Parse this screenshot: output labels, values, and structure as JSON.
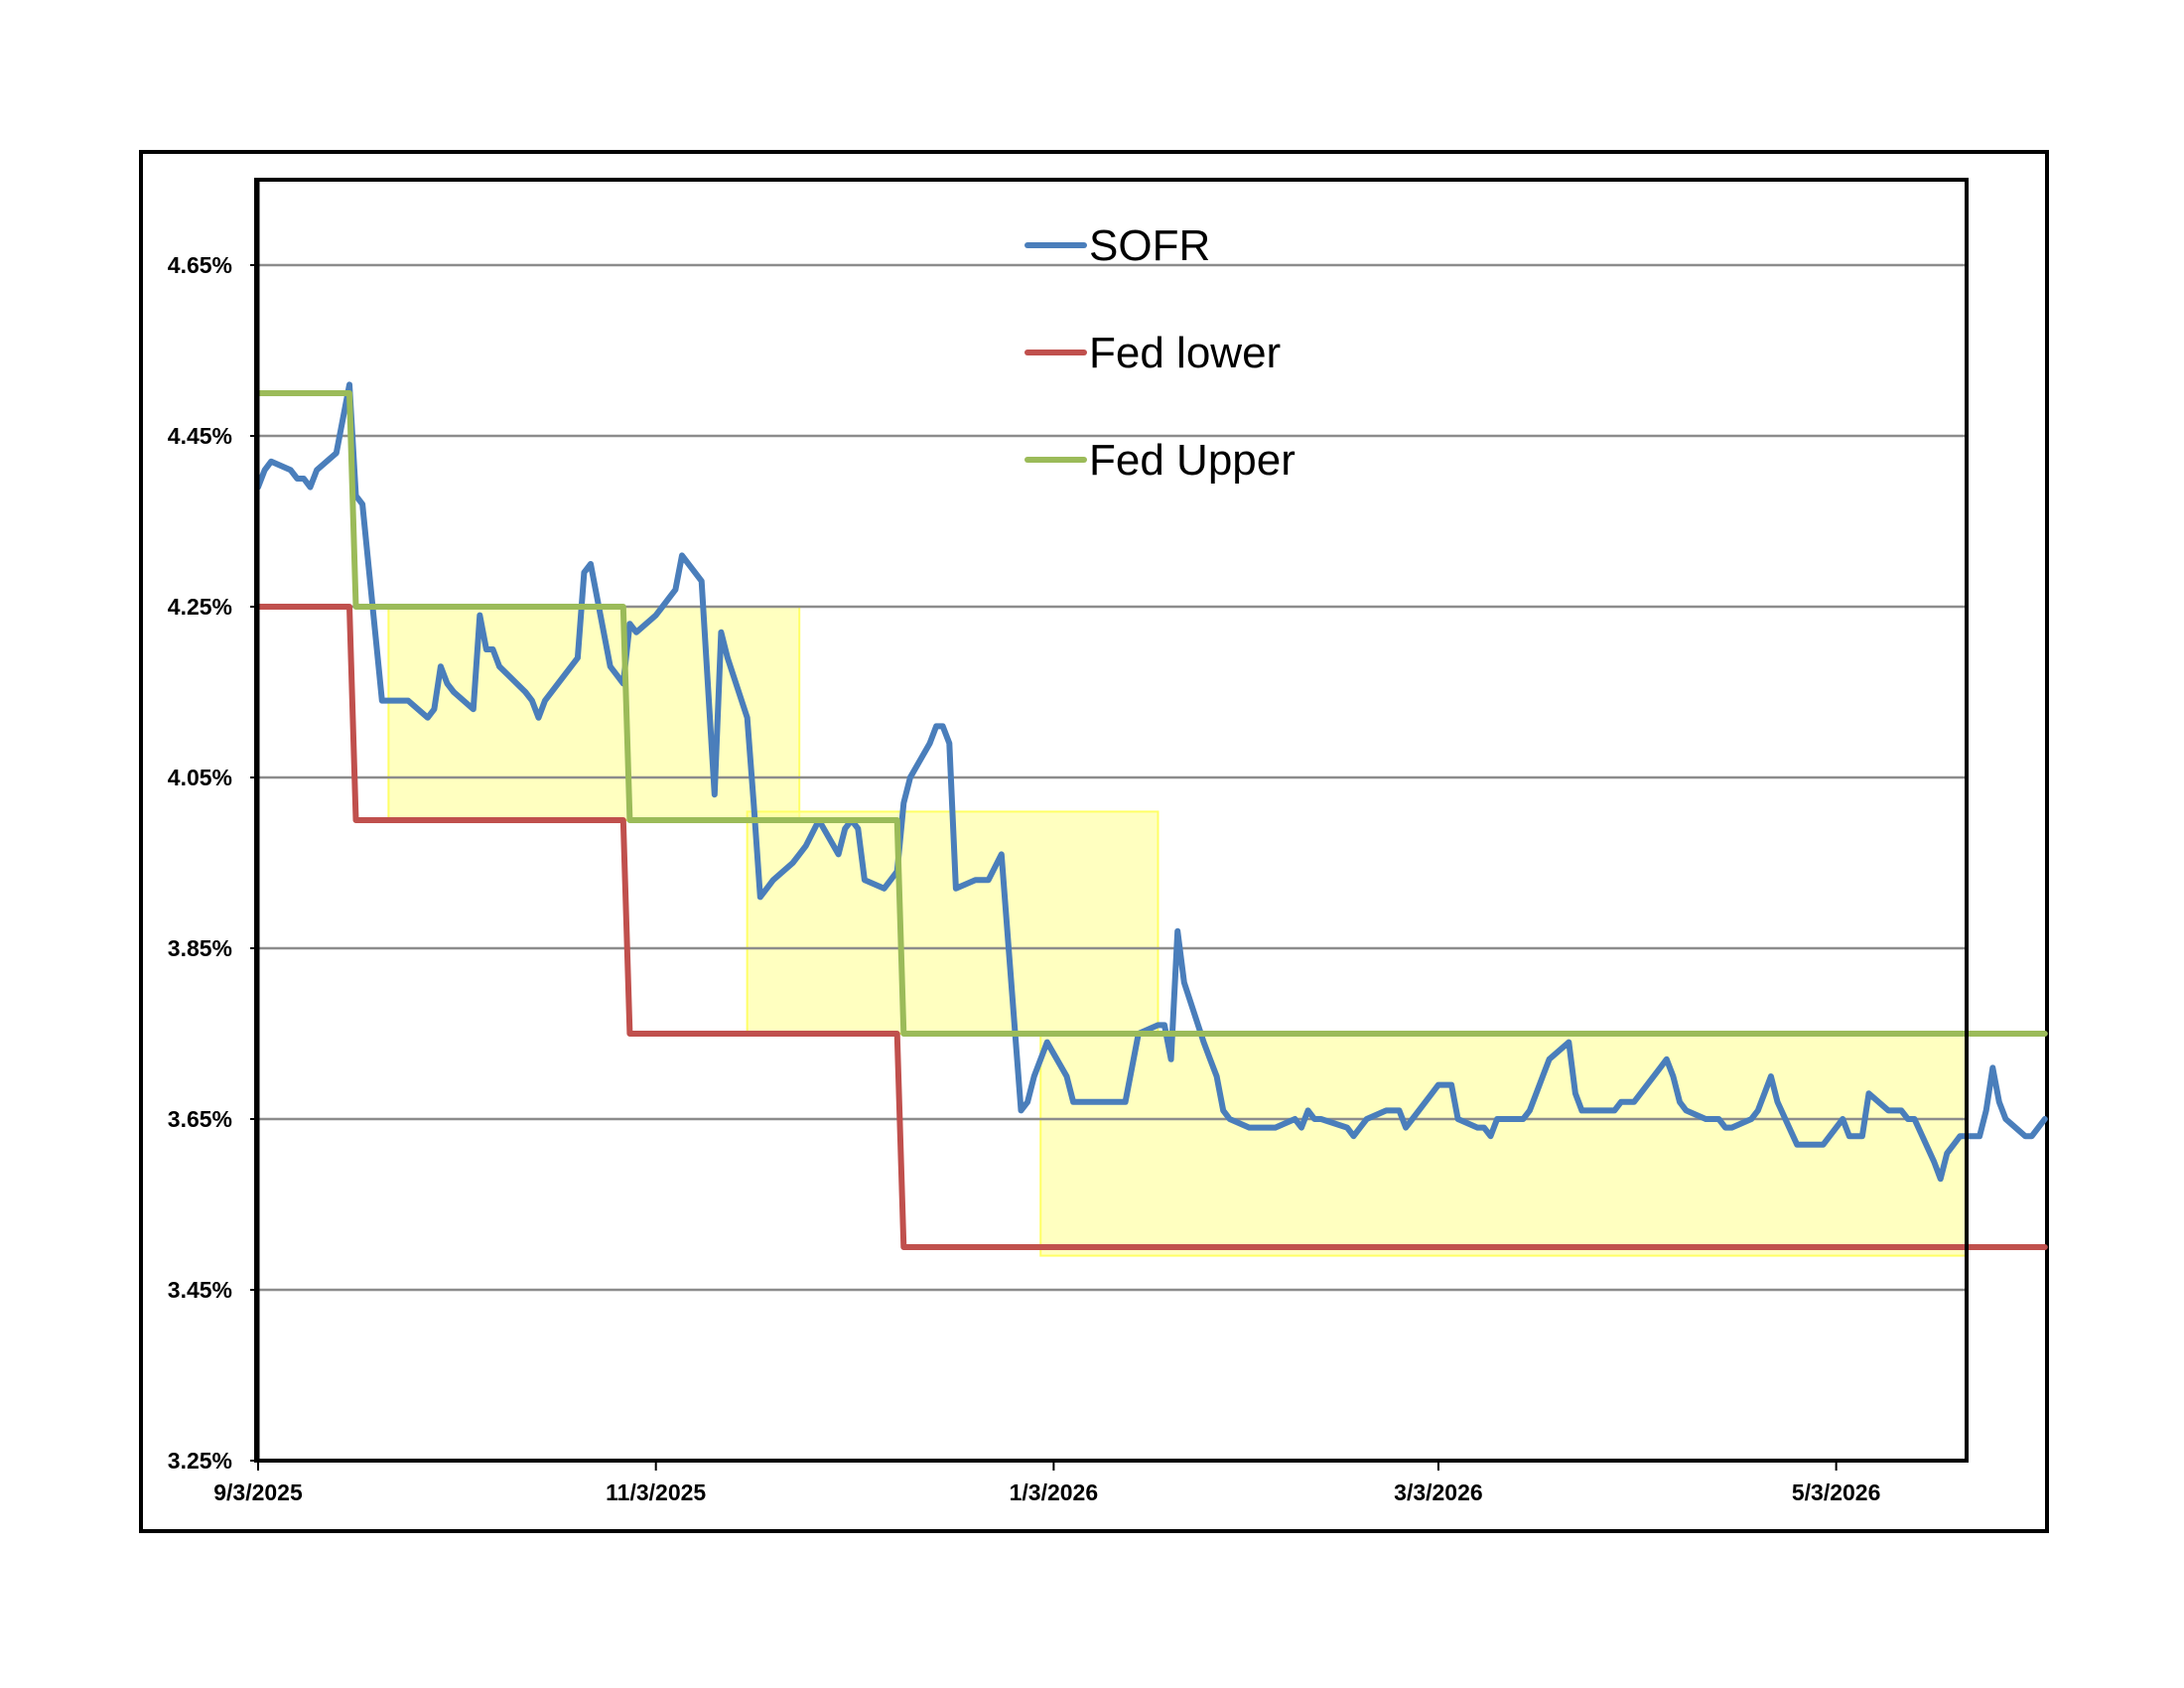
{
  "chart_data": {
    "type": "line",
    "title": "",
    "xlabel": "",
    "ylabel": "",
    "ylim": [
      3.25,
      4.75
    ],
    "xlim": [
      "2025-09-03",
      "2026-05-23"
    ],
    "grid": true,
    "legend_position": "top-center",
    "y_ticks": [
      {
        "value": 3.25,
        "label": "3.25%"
      },
      {
        "value": 3.45,
        "label": "3.45%"
      },
      {
        "value": 3.65,
        "label": "3.65%"
      },
      {
        "value": 3.85,
        "label": "3.85%"
      },
      {
        "value": 4.05,
        "label": "4.05%"
      },
      {
        "value": 4.25,
        "label": "4.25%"
      },
      {
        "value": 4.45,
        "label": "4.45%"
      },
      {
        "value": 4.65,
        "label": "4.65%"
      }
    ],
    "x_ticks": [
      {
        "date": "2025-09-03",
        "label": "9/3/2025"
      },
      {
        "date": "2025-11-03",
        "label": "11/3/2025"
      },
      {
        "date": "2026-01-03",
        "label": "1/3/2026"
      },
      {
        "date": "2026-03-03",
        "label": "3/3/2026"
      },
      {
        "date": "2026-05-03",
        "label": "5/3/2026"
      }
    ],
    "series": [
      {
        "name": "SOFR",
        "color": "#4a7ebb",
        "points": [
          [
            "2025-09-03",
            4.39
          ],
          [
            "2025-09-04",
            4.41
          ],
          [
            "2025-09-05",
            4.42
          ],
          [
            "2025-09-08",
            4.41
          ],
          [
            "2025-09-09",
            4.4
          ],
          [
            "2025-09-10",
            4.4
          ],
          [
            "2025-09-11",
            4.39
          ],
          [
            "2025-09-12",
            4.41
          ],
          [
            "2025-09-15",
            4.43
          ],
          [
            "2025-09-16",
            4.47
          ],
          [
            "2025-09-17",
            4.51
          ],
          [
            "2025-09-18",
            4.38
          ],
          [
            "2025-09-19",
            4.37
          ],
          [
            "2025-09-22",
            4.14
          ],
          [
            "2025-09-23",
            4.14
          ],
          [
            "2025-09-24",
            4.14
          ],
          [
            "2025-09-25",
            4.14
          ],
          [
            "2025-09-26",
            4.14
          ],
          [
            "2025-09-29",
            4.12
          ],
          [
            "2025-09-30",
            4.13
          ],
          [
            "2025-10-01",
            4.18
          ],
          [
            "2025-10-02",
            4.16
          ],
          [
            "2025-10-03",
            4.15
          ],
          [
            "2025-10-06",
            4.13
          ],
          [
            "2025-10-07",
            4.24
          ],
          [
            "2025-10-08",
            4.2
          ],
          [
            "2025-10-09",
            4.2
          ],
          [
            "2025-10-10",
            4.18
          ],
          [
            "2025-10-14",
            4.15
          ],
          [
            "2025-10-15",
            4.14
          ],
          [
            "2025-10-16",
            4.12
          ],
          [
            "2025-10-17",
            4.14
          ],
          [
            "2025-10-20",
            4.17
          ],
          [
            "2025-10-21",
            4.18
          ],
          [
            "2025-10-22",
            4.19
          ],
          [
            "2025-10-23",
            4.29
          ],
          [
            "2025-10-24",
            4.3
          ],
          [
            "2025-10-27",
            4.18
          ],
          [
            "2025-10-28",
            4.17
          ],
          [
            "2025-10-29",
            4.16
          ],
          [
            "2025-10-30",
            4.23
          ],
          [
            "2025-10-31",
            4.22
          ],
          [
            "2025-11-03",
            4.24
          ],
          [
            "2025-11-04",
            4.25
          ],
          [
            "2025-11-05",
            4.26
          ],
          [
            "2025-11-06",
            4.27
          ],
          [
            "2025-11-07",
            4.31
          ],
          [
            "2025-11-10",
            4.28
          ],
          [
            "2025-11-12",
            4.03
          ],
          [
            "2025-11-13",
            4.22
          ],
          [
            "2025-11-14",
            4.19
          ],
          [
            "2025-11-17",
            4.12
          ],
          [
            "2025-11-18",
            4.02
          ],
          [
            "2025-11-19",
            3.91
          ],
          [
            "2025-11-20",
            3.92
          ],
          [
            "2025-11-21",
            3.93
          ],
          [
            "2025-11-24",
            3.95
          ],
          [
            "2025-11-25",
            3.96
          ],
          [
            "2025-11-26",
            3.97
          ],
          [
            "2025-11-28",
            4.0
          ],
          [
            "2025-12-01",
            3.96
          ],
          [
            "2025-12-02",
            3.99
          ],
          [
            "2025-12-03",
            4.0
          ],
          [
            "2025-12-04",
            3.99
          ],
          [
            "2025-12-05",
            3.93
          ],
          [
            "2025-12-08",
            3.92
          ],
          [
            "2025-12-09",
            3.93
          ],
          [
            "2025-12-10",
            3.94
          ],
          [
            "2025-12-11",
            4.02
          ],
          [
            "2025-12-12",
            4.05
          ],
          [
            "2025-12-15",
            4.09
          ],
          [
            "2025-12-16",
            4.11
          ],
          [
            "2025-12-17",
            4.11
          ],
          [
            "2025-12-18",
            4.09
          ],
          [
            "2025-12-19",
            3.92
          ],
          [
            "2025-12-22",
            3.93
          ],
          [
            "2025-12-23",
            3.93
          ],
          [
            "2025-12-24",
            3.93
          ],
          [
            "2025-12-26",
            3.96
          ],
          [
            "2025-12-29",
            3.66
          ],
          [
            "2025-12-30",
            3.67
          ],
          [
            "2025-12-31",
            3.7
          ],
          [
            "2026-01-02",
            3.74
          ],
          [
            "2026-01-05",
            3.7
          ],
          [
            "2026-01-06",
            3.67
          ],
          [
            "2026-01-07",
            3.67
          ],
          [
            "2026-01-08",
            3.67
          ],
          [
            "2026-01-09",
            3.67
          ],
          [
            "2026-01-12",
            3.67
          ],
          [
            "2026-01-13",
            3.67
          ],
          [
            "2026-01-14",
            3.67
          ],
          [
            "2026-01-15",
            3.71
          ],
          [
            "2026-01-16",
            3.75
          ],
          [
            "2026-01-19",
            3.76
          ],
          [
            "2026-01-20",
            3.76
          ],
          [
            "2026-01-21",
            3.72
          ],
          [
            "2026-01-22",
            3.87
          ],
          [
            "2026-01-23",
            3.81
          ],
          [
            "2026-01-26",
            3.74
          ],
          [
            "2026-01-27",
            3.72
          ],
          [
            "2026-01-28",
            3.7
          ],
          [
            "2026-01-29",
            3.66
          ],
          [
            "2026-01-30",
            3.65
          ],
          [
            "2026-02-02",
            3.64
          ],
          [
            "2026-02-03",
            3.64
          ],
          [
            "2026-02-04",
            3.64
          ],
          [
            "2026-02-05",
            3.64
          ],
          [
            "2026-02-06",
            3.64
          ],
          [
            "2026-02-09",
            3.65
          ],
          [
            "2026-02-10",
            3.64
          ],
          [
            "2026-02-11",
            3.66
          ],
          [
            "2026-02-12",
            3.65
          ],
          [
            "2026-02-13",
            3.65
          ],
          [
            "2026-02-17",
            3.64
          ],
          [
            "2026-02-18",
            3.63
          ],
          [
            "2026-02-19",
            3.64
          ],
          [
            "2026-02-20",
            3.65
          ],
          [
            "2026-02-23",
            3.66
          ],
          [
            "2026-02-24",
            3.66
          ],
          [
            "2026-02-25",
            3.66
          ],
          [
            "2026-02-26",
            3.64
          ],
          [
            "2026-02-27",
            3.65
          ],
          [
            "2026-03-02",
            3.68
          ],
          [
            "2026-03-03",
            3.69
          ],
          [
            "2026-03-04",
            3.69
          ],
          [
            "2026-03-05",
            3.69
          ],
          [
            "2026-03-06",
            3.65
          ],
          [
            "2026-03-09",
            3.64
          ],
          [
            "2026-03-10",
            3.64
          ],
          [
            "2026-03-11",
            3.63
          ],
          [
            "2026-03-12",
            3.65
          ],
          [
            "2026-03-13",
            3.65
          ],
          [
            "2026-03-16",
            3.65
          ],
          [
            "2026-03-17",
            3.66
          ],
          [
            "2026-03-18",
            3.68
          ],
          [
            "2026-03-19",
            3.7
          ],
          [
            "2026-03-20",
            3.72
          ],
          [
            "2026-03-23",
            3.74
          ],
          [
            "2026-03-24",
            3.68
          ],
          [
            "2026-03-25",
            3.66
          ],
          [
            "2026-03-26",
            3.66
          ],
          [
            "2026-03-27",
            3.66
          ],
          [
            "2026-03-30",
            3.66
          ],
          [
            "2026-03-31",
            3.67
          ],
          [
            "2026-04-01",
            3.67
          ],
          [
            "2026-04-02",
            3.67
          ],
          [
            "2026-04-03",
            3.68
          ],
          [
            "2026-04-06",
            3.71
          ],
          [
            "2026-04-07",
            3.72
          ],
          [
            "2026-04-08",
            3.7
          ],
          [
            "2026-04-09",
            3.67
          ],
          [
            "2026-04-10",
            3.66
          ],
          [
            "2026-04-13",
            3.65
          ],
          [
            "2026-04-14",
            3.65
          ],
          [
            "2026-04-15",
            3.65
          ],
          [
            "2026-04-16",
            3.64
          ],
          [
            "2026-04-17",
            3.64
          ],
          [
            "2026-04-20",
            3.65
          ],
          [
            "2026-04-21",
            3.66
          ],
          [
            "2026-04-22",
            3.68
          ],
          [
            "2026-04-23",
            3.7
          ],
          [
            "2026-04-24",
            3.67
          ],
          [
            "2026-04-27",
            3.62
          ],
          [
            "2026-04-28",
            3.62
          ],
          [
            "2026-04-29",
            3.62
          ],
          [
            "2026-04-30",
            3.62
          ],
          [
            "2026-05-01",
            3.62
          ],
          [
            "2026-05-04",
            3.65
          ],
          [
            "2026-05-05",
            3.63
          ],
          [
            "2026-05-06",
            3.63
          ],
          [
            "2026-05-07",
            3.63
          ],
          [
            "2026-05-08",
            3.68
          ],
          [
            "2026-05-11",
            3.66
          ],
          [
            "2026-05-12",
            3.66
          ],
          [
            "2026-05-13",
            3.66
          ],
          [
            "2026-05-14",
            3.65
          ],
          [
            "2026-05-15",
            3.65
          ],
          [
            "2026-05-18",
            3.6
          ],
          [
            "2026-05-19",
            3.58
          ],
          [
            "2026-05-20",
            3.61
          ],
          [
            "2026-05-21",
            3.62
          ],
          [
            "2026-05-22",
            3.63
          ],
          [
            "2026-05-25",
            3.63
          ],
          [
            "2026-05-26",
            3.66
          ],
          [
            "2026-05-27",
            3.71
          ],
          [
            "2026-05-28",
            3.67
          ],
          [
            "2026-05-29",
            3.65
          ],
          [
            "2026-06-01",
            3.63
          ],
          [
            "2026-06-02",
            3.63
          ],
          [
            "2026-06-03",
            3.64
          ],
          [
            "2026-06-04",
            3.65
          ]
        ]
      },
      {
        "name": "Fed lower",
        "color": "#c0504d",
        "points": [
          [
            "2025-09-03",
            4.25
          ],
          [
            "2025-09-17",
            4.25
          ],
          [
            "2025-09-18",
            4.0
          ],
          [
            "2025-10-29",
            4.0
          ],
          [
            "2025-10-30",
            3.75
          ],
          [
            "2025-12-10",
            3.75
          ],
          [
            "2025-12-11",
            3.5
          ],
          [
            "2026-06-04",
            3.5
          ]
        ]
      },
      {
        "name": "Fed Upper",
        "color": "#9bbb59",
        "points": [
          [
            "2025-09-03",
            4.5
          ],
          [
            "2025-09-17",
            4.5
          ],
          [
            "2025-09-18",
            4.25
          ],
          [
            "2025-10-29",
            4.25
          ],
          [
            "2025-10-30",
            4.0
          ],
          [
            "2025-12-10",
            4.0
          ],
          [
            "2025-12-11",
            3.75
          ],
          [
            "2026-06-04",
            3.75
          ]
        ]
      }
    ],
    "highlight_color": "#ffff99",
    "highlight_bands": [
      {
        "start": "2025-09-23",
        "end": "2025-11-25",
        "y_low": 4.0,
        "y_high": 4.25
      },
      {
        "start": "2025-11-17",
        "end": "2026-01-19",
        "y_low": 3.75,
        "y_high": 4.01
      },
      {
        "start": "2026-01-01",
        "end": "2026-06-30",
        "y_low": 3.49,
        "y_high": 3.75
      }
    ]
  }
}
